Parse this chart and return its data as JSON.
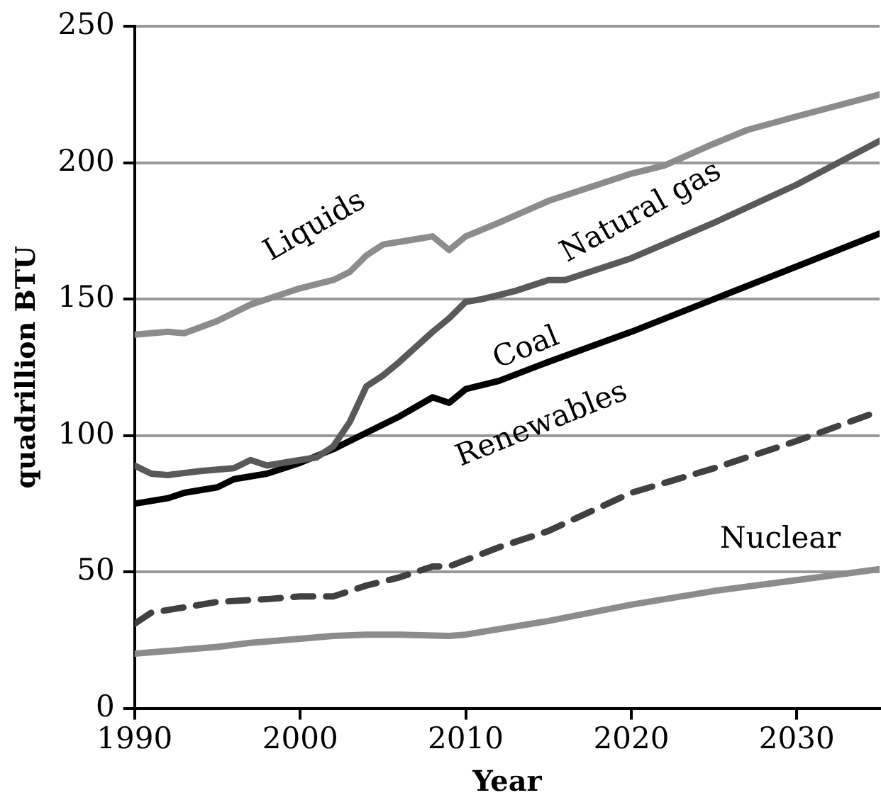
{
  "chart_data": {
    "type": "line",
    "xlabel": "Year",
    "ylabel": "quadrillion BTU",
    "xlim": [
      1990,
      2035
    ],
    "xticks": [
      1990,
      2000,
      2010,
      2020,
      2030
    ],
    "ylim": [
      0,
      250
    ],
    "yticks": [
      0,
      50,
      100,
      150,
      200,
      250
    ],
    "grid": "y",
    "legend": false,
    "marker": "none",
    "series": [
      {
        "name": "Liquids",
        "color": "#8c8c8c",
        "line_style": "solid",
        "x": [
          1990,
          1992,
          1993,
          1995,
          1997,
          1998,
          2000,
          2002,
          2003,
          2004,
          2005,
          2007,
          2008,
          2009,
          2010,
          2012,
          2015,
          2020,
          2022,
          2025,
          2027,
          2030,
          2035
        ],
        "values": [
          137,
          138,
          137.5,
          142,
          148,
          150,
          154,
          157,
          160,
          166,
          170,
          172,
          173,
          168,
          173,
          178,
          186,
          196,
          199,
          207,
          212,
          217,
          225
        ]
      },
      {
        "name": "Natural gas",
        "color": "#595959",
        "line_style": "solid",
        "x": [
          1990,
          1991,
          1992,
          1994,
          1996,
          1997,
          1998,
          2000,
          2001,
          2002,
          2003,
          2004,
          2005,
          2006,
          2008,
          2009,
          2010,
          2011,
          2013,
          2015,
          2016,
          2020,
          2025,
          2030,
          2035
        ],
        "values": [
          89,
          86,
          85.5,
          87,
          88,
          91,
          89,
          91,
          92,
          96,
          105,
          118,
          122,
          127,
          138,
          143,
          149,
          150,
          153,
          157,
          157,
          165,
          178,
          192,
          208
        ]
      },
      {
        "name": "Coal",
        "color": "#000000",
        "line_style": "solid",
        "x": [
          1990,
          1992,
          1993,
          1995,
          1996,
          1998,
          2000,
          2002,
          2004,
          2006,
          2008,
          2009,
          2010,
          2012,
          2015,
          2020,
          2025,
          2030,
          2035
        ],
        "values": [
          75,
          77,
          79,
          81,
          84,
          86,
          90,
          95,
          101,
          107,
          114,
          112,
          117,
          120,
          127,
          138,
          150,
          162,
          174
        ]
      },
      {
        "name": "Renewables",
        "color": "#404040",
        "line_style": "dashed",
        "x": [
          1990,
          1991,
          1995,
          1998,
          2000,
          2002,
          2004,
          2006,
          2008,
          2009,
          2012,
          2015,
          2020,
          2025,
          2030,
          2035
        ],
        "values": [
          31,
          35,
          39,
          40,
          41,
          41,
          45,
          48,
          52,
          52,
          59,
          65,
          79,
          88,
          98,
          109
        ]
      },
      {
        "name": "Nuclear",
        "color": "#8c8c8c",
        "line_style": "solid",
        "x": [
          1990,
          1992,
          1995,
          1997,
          2000,
          2002,
          2004,
          2006,
          2009,
          2010,
          2015,
          2020,
          2025,
          2030,
          2035
        ],
        "values": [
          20,
          21,
          22.5,
          24,
          25.5,
          26.5,
          27,
          27,
          26.5,
          27,
          32,
          38,
          43,
          47,
          51
        ]
      }
    ]
  }
}
